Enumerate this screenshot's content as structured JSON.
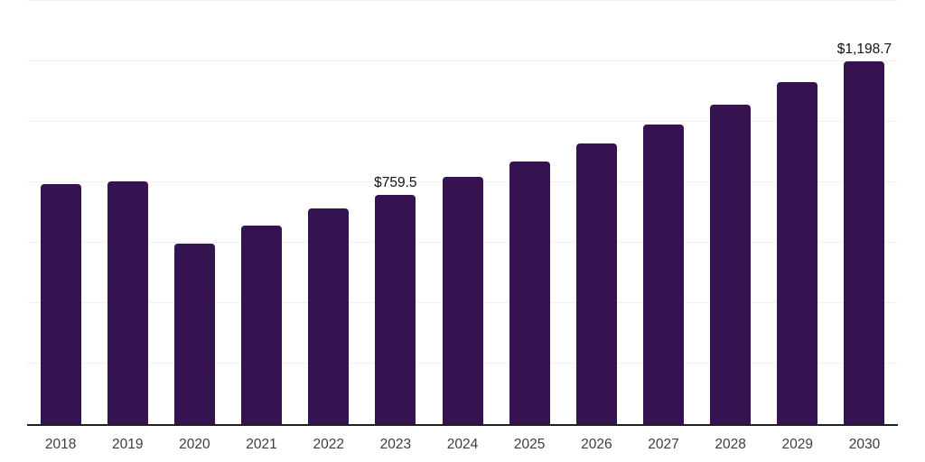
{
  "chart_data": {
    "type": "bar",
    "title": "",
    "xlabel": "",
    "ylabel": "",
    "categories": [
      "2018",
      "2019",
      "2020",
      "2021",
      "2022",
      "2023",
      "2024",
      "2025",
      "2026",
      "2027",
      "2028",
      "2029",
      "2030"
    ],
    "values": [
      795.0,
      804.0,
      597.0,
      657.0,
      712.0,
      759.5,
      817.0,
      868.0,
      929.0,
      990.0,
      1058.0,
      1131.0,
      1198.7
    ],
    "bar_labels": [
      "",
      "",
      "",
      "",
      "",
      "$759.5",
      "",
      "",
      "",
      "",
      "",
      "",
      "$1,198.7"
    ],
    "ylim": [
      0,
      1400
    ],
    "gridline_step": 200,
    "grid": "on",
    "legend": "none",
    "colors": {
      "bar": "#351250",
      "gridline": "#f0f0f0",
      "axis_line": "#1f1f1f",
      "tick_text": "#3d3d3d",
      "label_text": "#111111",
      "background": "#ffffff"
    }
  }
}
